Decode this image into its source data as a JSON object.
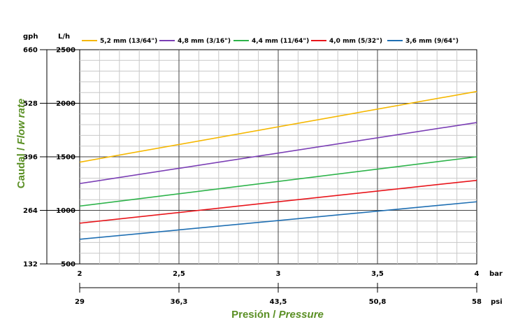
{
  "chart_data": {
    "type": "line",
    "xlabel": "Presión / Pressure",
    "xlabel_parts": [
      "Presión / ",
      "Pressure"
    ],
    "ylabel": "Caudal / Flow rate",
    "ylabel_parts": [
      "Caudal / ",
      "Flow rate"
    ],
    "x_unit_primary": "bar",
    "x_unit_secondary": "psi",
    "y_unit_primary": "L/h",
    "y_unit_secondary": "gph",
    "x_ticks": [
      "2",
      "2,5",
      "3",
      "3,5",
      "4"
    ],
    "x_ticks_psi": [
      "29",
      "36,3",
      "43,5",
      "50,8",
      "58"
    ],
    "y_ticks": [
      "500",
      "1000",
      "1500",
      "2000",
      "2500"
    ],
    "y_ticks_gph": [
      "132",
      "264",
      "396",
      "528",
      "660"
    ],
    "xlim": [
      2,
      4
    ],
    "ylim": [
      500,
      2500
    ],
    "grid": true,
    "legend_position": "top",
    "series": [
      {
        "name": "5,2 mm (13/64\")",
        "color": "#f5b700",
        "x": [
          2,
          4
        ],
        "y": [
          1450,
          2110
        ]
      },
      {
        "name": "4,8 mm (3/16\")",
        "color": "#7b3fb5",
        "x": [
          2,
          4
        ],
        "y": [
          1250,
          1820
        ]
      },
      {
        "name": "4,4 mm (11/64\")",
        "color": "#2db34a",
        "x": [
          2,
          4
        ],
        "y": [
          1040,
          1500
        ]
      },
      {
        "name": "4,0 mm (5/32\")",
        "color": "#e8151b",
        "x": [
          2,
          4
        ],
        "y": [
          880,
          1280
        ]
      },
      {
        "name": "3,6 mm (9/64\")",
        "color": "#1f6fb3",
        "x": [
          2,
          4
        ],
        "y": [
          730,
          1080
        ]
      }
    ]
  }
}
